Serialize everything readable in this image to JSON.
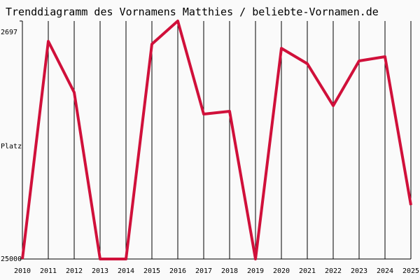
{
  "chart_data": {
    "type": "line",
    "title": "Trenddiagramm des Vornamens Matthies / beliebte-Vornamen.de",
    "y_label": "Platz",
    "categories": [
      "2010",
      "2011",
      "2012",
      "2013",
      "2014",
      "2015",
      "2016",
      "2017",
      "2018",
      "2019",
      "2020",
      "2021",
      "2022",
      "2023",
      "2024",
      "2025"
    ],
    "series": [
      {
        "name": "Matthies",
        "color": "#d0103a",
        "values": [
          25000,
          4599,
          9388,
          25000,
          25000,
          4862,
          2697,
          11422,
          11159,
          25000,
          5255,
          6699,
          10634,
          6436,
          6043,
          19949
        ]
      }
    ],
    "ylim": [
      25000,
      2697
    ],
    "yticks": [
      2697,
      25000
    ],
    "grid": true
  }
}
